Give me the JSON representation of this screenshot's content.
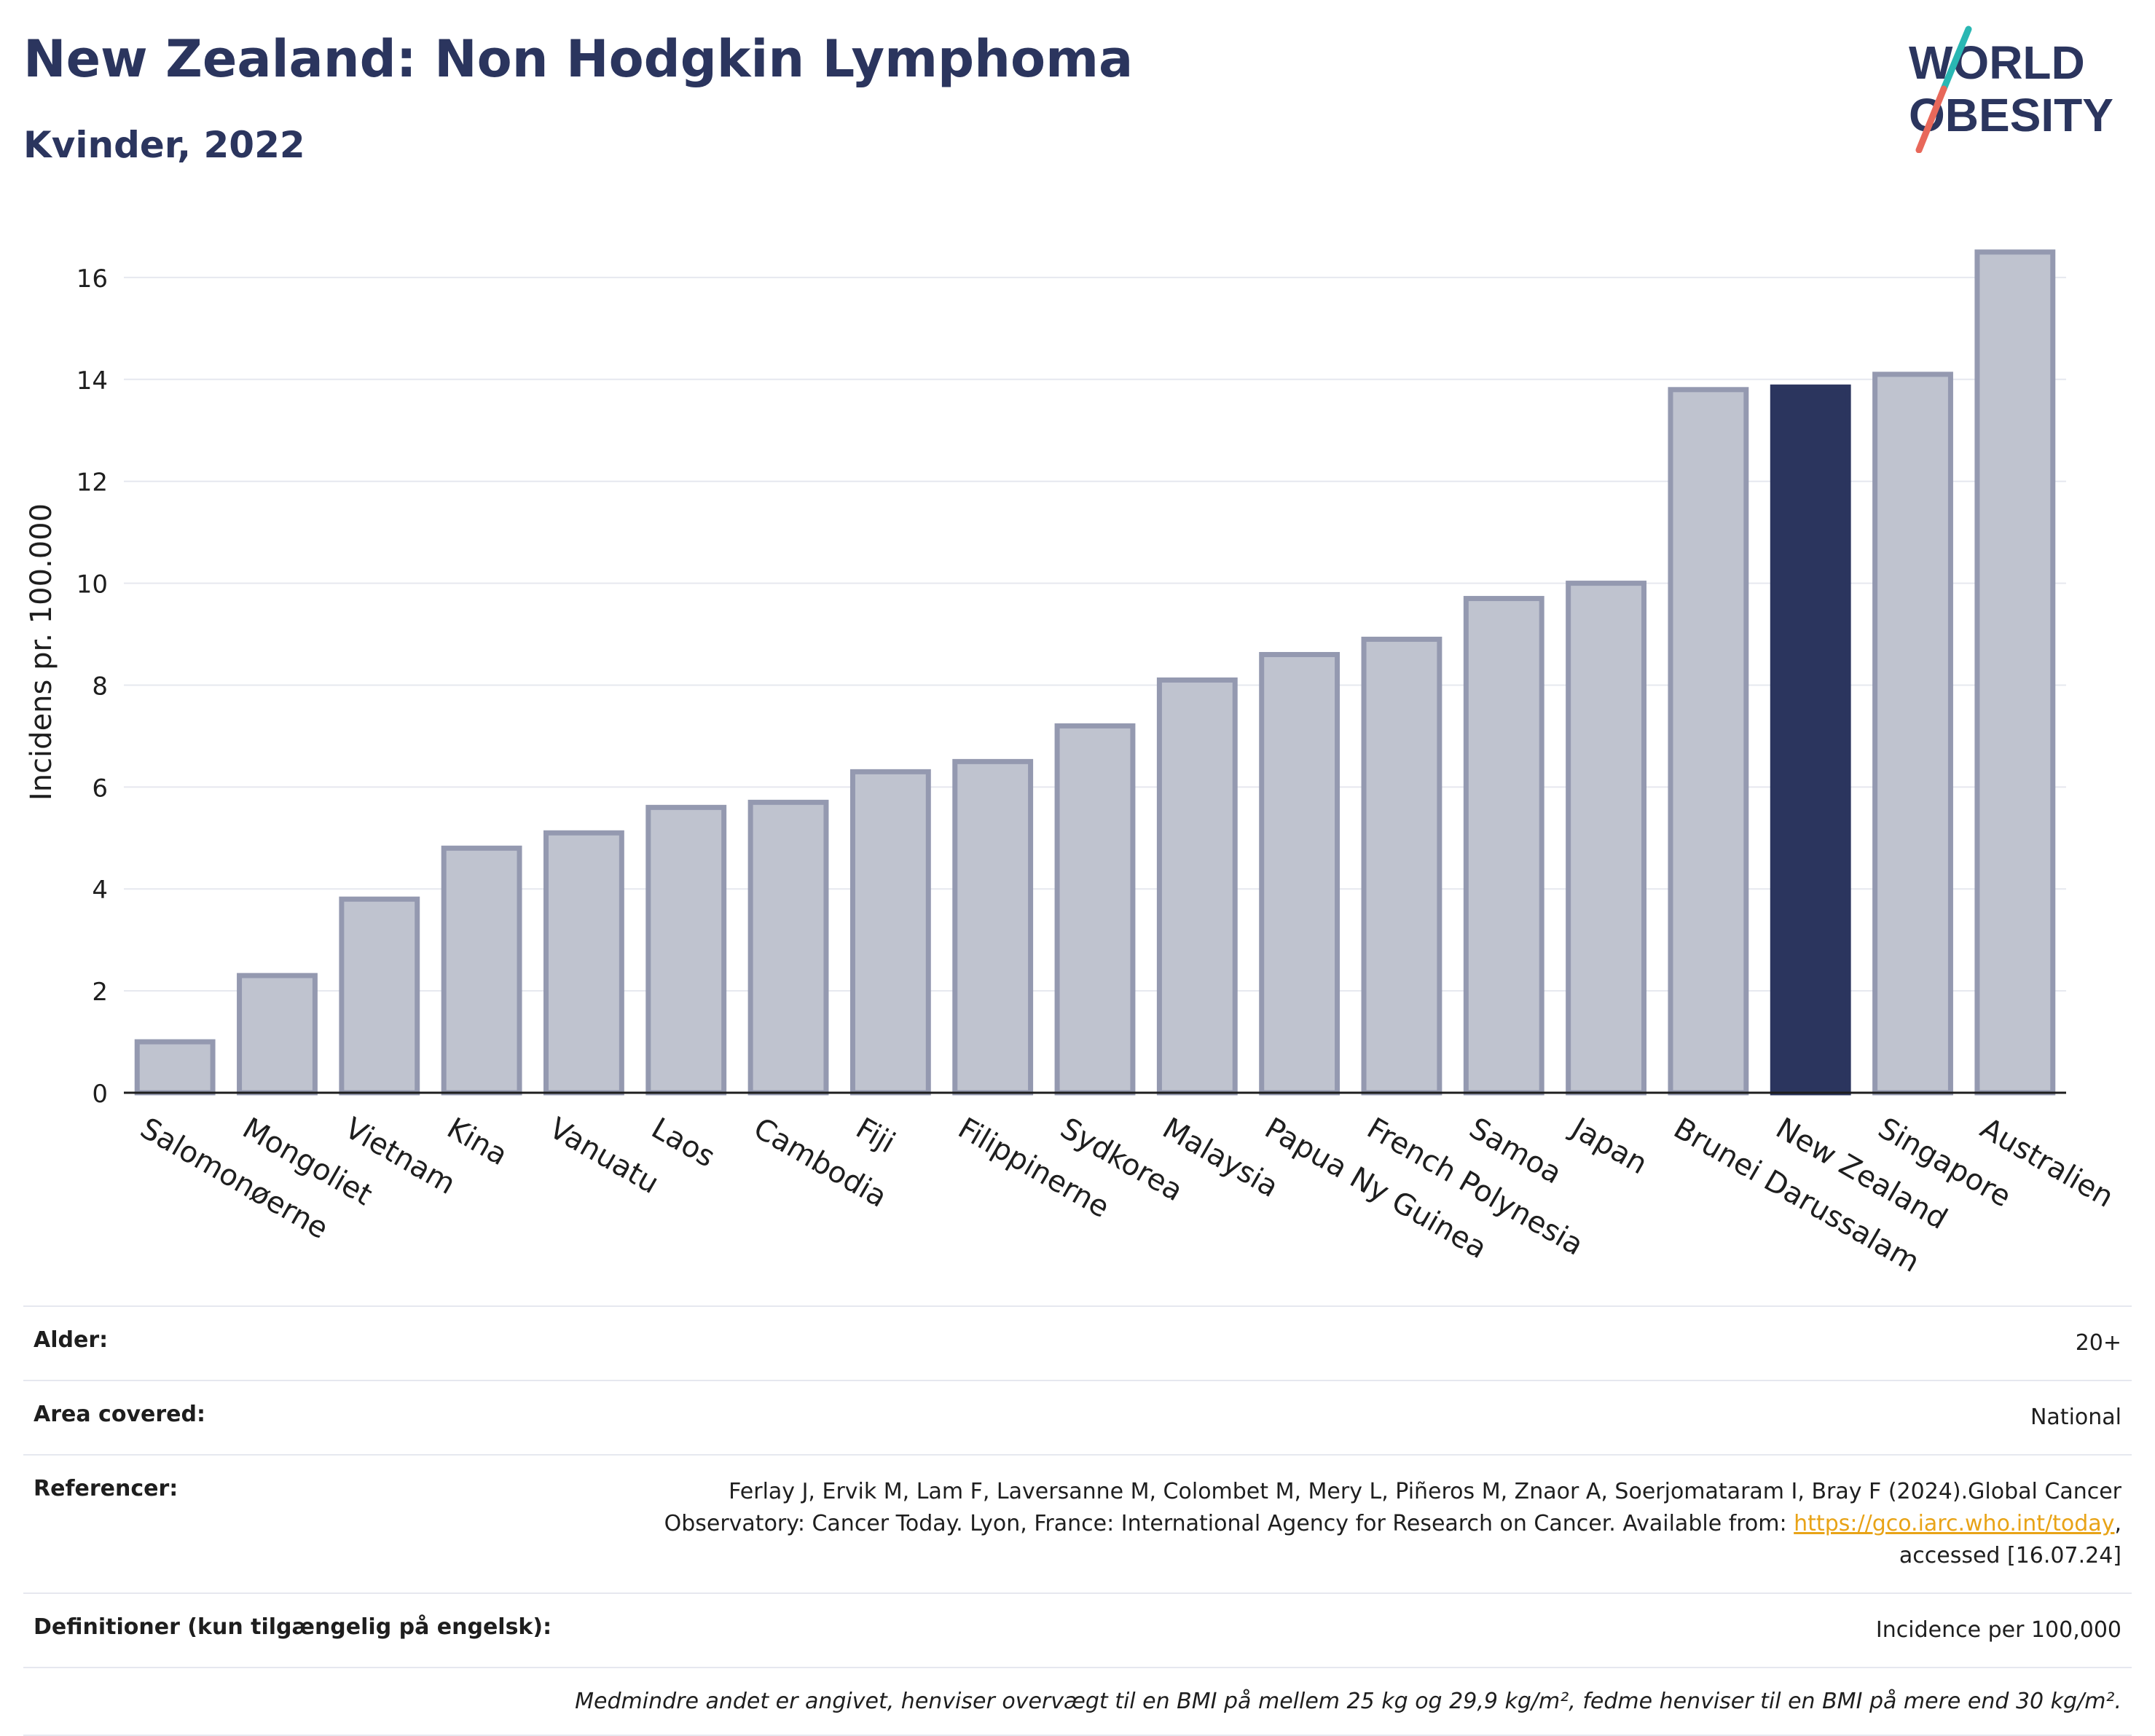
{
  "header": {
    "title": "New Zealand: Non Hodgkin Lymphoma",
    "subtitle": "Kvinder, 2022"
  },
  "logo": {
    "line1": "WORLD",
    "line2": "OBESITY",
    "accent_teal": "#2ab7b3",
    "accent_coral": "#e8685a"
  },
  "colors": {
    "bar": "#bfc3cf",
    "bar_border": "#9499b0",
    "highlight": "#2b355e",
    "grid": "#e6e8ef",
    "axis": "#1e1e1e"
  },
  "chart_data": {
    "type": "bar",
    "categories": [
      "Salomonøerne",
      "Mongoliet",
      "Vietnam",
      "Kina",
      "Vanuatu",
      "Laos",
      "Cambodia",
      "Fiji",
      "Filippinerne",
      "Sydkorea",
      "Malaysia",
      "Papua Ny Guinea",
      "French Polynesia",
      "Samoa",
      "Japan",
      "Brunei Darussalam",
      "New Zealand",
      "Singapore",
      "Australien"
    ],
    "values": [
      1.0,
      2.3,
      3.8,
      4.8,
      5.1,
      5.6,
      5.7,
      6.3,
      6.5,
      7.2,
      8.1,
      8.6,
      8.9,
      9.7,
      10.0,
      13.8,
      13.85,
      14.1,
      16.5
    ],
    "highlight": "New Zealand",
    "ylabel": "Incidens pr. 100.000",
    "xlabel": "",
    "ylim": [
      0,
      17.3
    ],
    "yticks": [
      0,
      2,
      4,
      6,
      8,
      10,
      12,
      14,
      16
    ],
    "grid": true
  },
  "info": {
    "rows": [
      {
        "label": "Alder:",
        "value": "20+"
      },
      {
        "label": "Area covered:",
        "value": "National"
      },
      {
        "label": "Referencer:",
        "value_pre": "Ferlay J, Ervik M, Lam F, Laversanne M, Colombet M, Mery L, Piñeros M, Znaor A, Soerjomataram I, Bray F (2024).Global Cancer Observatory: Cancer Today. Lyon, France: International Agency for Research on Cancer. Available from: ",
        "link": "https://gco.iarc.who.int/today",
        "value_post": ", accessed [16.07.24]"
      },
      {
        "label": "Definitioner (kun tilgængelig på engelsk):",
        "value": "Incidence per 100,000"
      }
    ],
    "note": "Medmindre andet er angivet, henviser overvægt til en BMI på mellem 25 kg og 29,9 kg/m², fedme henviser til en BMI på mere end 30 kg/m²."
  }
}
